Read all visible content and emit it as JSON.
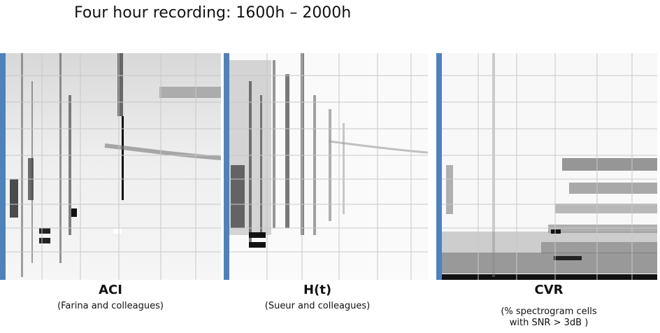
{
  "title": "Four hour recording: 1600h – 2000h",
  "panels": [
    {
      "label": "ACI",
      "caption_lines": [
        "(Farina and colleagues)"
      ]
    },
    {
      "label": "H(t)",
      "caption_lines": [
        "(Sueur and colleagues)"
      ]
    },
    {
      "label": "CVR",
      "caption_lines": [
        "(% spectrogram cells",
        "with SNR > 3dB )"
      ]
    }
  ],
  "colors": {
    "accent_bar": "#4f81bd",
    "grid": "#c8c8c8",
    "ink": "#111111"
  }
}
